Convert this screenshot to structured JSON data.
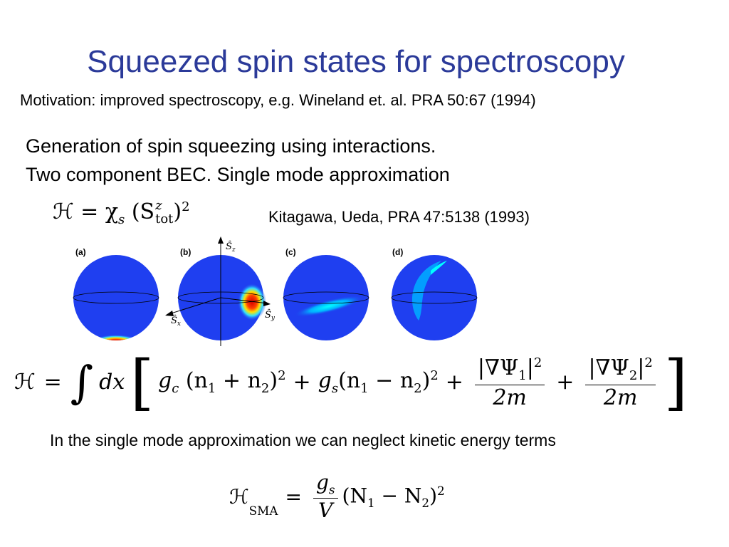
{
  "slide": {
    "title": "Squeezed spin states for spectroscopy",
    "motivation": "Motivation: improved spectroscopy, e.g. Wineland et. al. PRA 50:67 (1994)",
    "generation_line1": "Generation of spin squeezing using interactions.",
    "generation_line2": "Two component BEC. Single mode approximation",
    "citation": "Kitagawa, Ueda, PRA 47:5138 (1993)",
    "note": "In the single mode approximation we can neglect kinetic energy terms",
    "title_color": "#2b3a99"
  },
  "equations": {
    "kitagawa": {
      "lhs": "ℋ = χ",
      "chi_sub": "s",
      "operator": "(S",
      "op_sup": "z",
      "op_sub": "tot",
      "close": ")",
      "power": "2"
    },
    "full": {
      "lhs": "ℋ",
      "eq": "=",
      "integral": "∫",
      "dx": "dx",
      "open_bracket": "[",
      "gc": "g",
      "gc_sub": "c",
      "term1": "(n",
      "n1_sub": "1",
      "plus_n": " + n",
      "n2_sub": "2",
      "close_sq": ")",
      "sq": "2",
      "plus1": "+",
      "gs": "g",
      "gs_sub": "s",
      "term2": "(n",
      "n1b_sub": "1",
      "minus_n": " − n",
      "n2b_sub": "2",
      "close2": ")",
      "sq2": "2",
      "plus2": "+",
      "frac1_num": "|∇Ψ",
      "frac1_num_sub": "1",
      "frac1_num_end": "|",
      "frac1_sq": "2",
      "frac1_den": "2m",
      "plus3": "+",
      "frac2_num": "|∇Ψ",
      "frac2_num_sub": "2",
      "frac2_num_end": "|",
      "frac2_sq": "2",
      "frac2_den": "2m",
      "close_bracket": "]"
    },
    "sma": {
      "lhs": "ℋ",
      "lhs_sub": "SMA",
      "eq": "=",
      "num": "g",
      "num_sub": "s",
      "den": "V",
      "body": "(N",
      "n1": "1",
      "minus": " − N",
      "n2": "2",
      "close": ")",
      "power": "2"
    }
  },
  "figure": {
    "panel_labels": [
      "(a)",
      "(b)",
      "(c)",
      "(d)"
    ],
    "axis_labels": {
      "z_hat": "Ŝ",
      "z_sub": "z",
      "x_hat": "Ŝ",
      "x_sub": "x",
      "y_hat": "Ŝ",
      "y_sub": "y"
    },
    "sphere_color": "#1f3ff0"
  }
}
